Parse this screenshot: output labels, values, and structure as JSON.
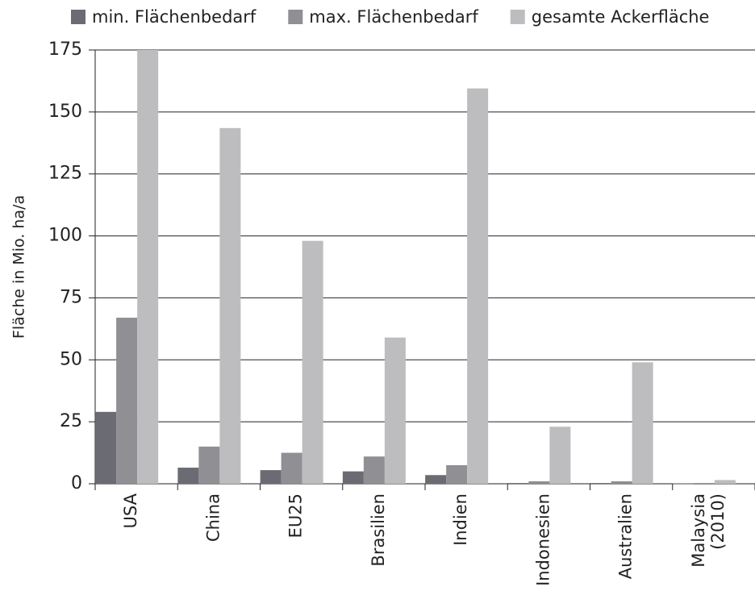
{
  "chart_data": {
    "type": "bar",
    "y_label": "Fläche in Mio. ha/a",
    "categories": [
      "USA",
      "China",
      "EU25",
      "Brasilien",
      "Indien",
      "Indonesien",
      "Australien",
      "Malaysia (2010)"
    ],
    "series": [
      {
        "name": "min. Flächenbedarf",
        "color": "#6b6b73",
        "values": [
          29,
          6.5,
          5.5,
          5,
          3.5,
          0.3,
          0.3,
          0.1
        ]
      },
      {
        "name": "max. Flächenbedarf",
        "color": "#8f8f94",
        "values": [
          67,
          15,
          12.5,
          11,
          7.5,
          1,
          1,
          0.3
        ]
      },
      {
        "name": "gesamte Ackerfläche",
        "color": "#bdbdc0",
        "values": [
          175,
          143.5,
          98,
          59,
          159.5,
          23,
          49,
          1.5
        ]
      }
    ],
    "ylim": [
      0,
      175
    ],
    "yticks": [
      0,
      25,
      50,
      75,
      100,
      125,
      150,
      175
    ],
    "grid": true
  }
}
